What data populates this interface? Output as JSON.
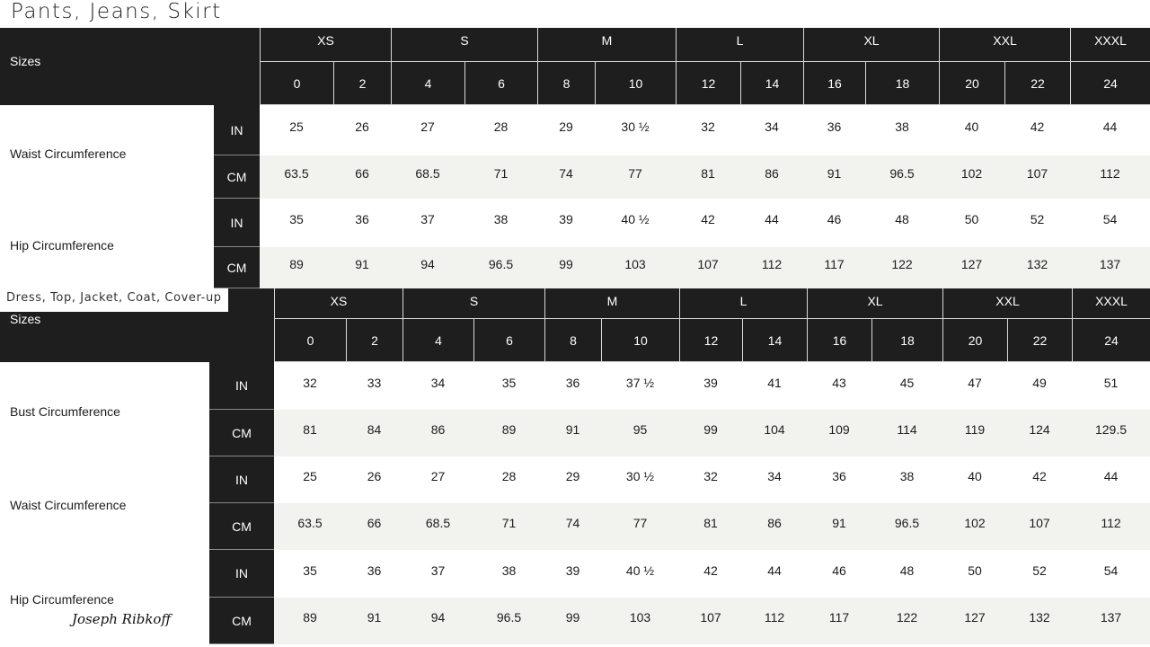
{
  "title": "Pants, Jeans, Skirt",
  "colors": {
    "header_bg": "#1e1e1e",
    "alt_row_bg": "#f2f2ee",
    "row_bg": "#ffffff"
  },
  "tables": [
    {
      "subtitle": "",
      "sizes_label": "Sizes",
      "groups": [
        "XS",
        "S",
        "M",
        "L",
        "XL",
        "XXL",
        "XXXL"
      ],
      "numbers": [
        "0",
        "2",
        "4",
        "6",
        "8",
        "10",
        "12",
        "14",
        "16",
        "18",
        "20",
        "22",
        "24"
      ],
      "measurements": [
        {
          "label": "Waist Circumference",
          "rows": [
            {
              "unit": "IN",
              "values": [
                "25",
                "26",
                "27",
                "28",
                "29",
                "30 ½",
                "32",
                "34",
                "36",
                "38",
                "40",
                "42",
                "44"
              ]
            },
            {
              "unit": "CM",
              "values": [
                "63.5",
                "66",
                "68.5",
                "71",
                "74",
                "77",
                "81",
                "86",
                "91",
                "96.5",
                "102",
                "107",
                "112"
              ]
            }
          ]
        },
        {
          "label": "Hip Circumference",
          "rows": [
            {
              "unit": "IN",
              "values": [
                "35",
                "36",
                "37",
                "38",
                "39",
                "40 ½",
                "42",
                "44",
                "46",
                "48",
                "50",
                "52",
                "54"
              ]
            },
            {
              "unit": "CM",
              "values": [
                "89",
                "91",
                "94",
                "96.5",
                "99",
                "103",
                "107",
                "112",
                "117",
                "122",
                "127",
                "132",
                "137"
              ]
            }
          ]
        }
      ]
    },
    {
      "subtitle": "Dress, Top, Jacket, Coat, Cover-up",
      "sizes_label": "Sizes",
      "groups": [
        "XS",
        "S",
        "M",
        "L",
        "XL",
        "XXL",
        "XXXL"
      ],
      "numbers": [
        "0",
        "2",
        "4",
        "6",
        "8",
        "10",
        "12",
        "14",
        "16",
        "18",
        "20",
        "22",
        "24"
      ],
      "measurements": [
        {
          "label": "Bust Circumference",
          "rows": [
            {
              "unit": "IN",
              "values": [
                "32",
                "33",
                "34",
                "35",
                "36",
                "37 ½",
                "39",
                "41",
                "43",
                "45",
                "47",
                "49",
                "51"
              ]
            },
            {
              "unit": "CM",
              "values": [
                "81",
                "84",
                "86",
                "89",
                "91",
                "95",
                "99",
                "104",
                "109",
                "114",
                "119",
                "124",
                "129.5"
              ]
            }
          ]
        },
        {
          "label": "Waist Circumference",
          "rows": [
            {
              "unit": "IN",
              "values": [
                "25",
                "26",
                "27",
                "28",
                "29",
                "30 ½",
                "32",
                "34",
                "36",
                "38",
                "40",
                "42",
                "44"
              ]
            },
            {
              "unit": "CM",
              "values": [
                "63.5",
                "66",
                "68.5",
                "71",
                "74",
                "77",
                "81",
                "86",
                "91",
                "96.5",
                "102",
                "107",
                "112"
              ]
            }
          ]
        },
        {
          "label": "Hip Circumference",
          "rows": [
            {
              "unit": "IN",
              "values": [
                "35",
                "36",
                "37",
                "38",
                "39",
                "40 ½",
                "42",
                "44",
                "46",
                "48",
                "50",
                "52",
                "54"
              ]
            },
            {
              "unit": "CM",
              "values": [
                "89",
                "91",
                "94",
                "96.5",
                "99",
                "103",
                "107",
                "112",
                "117",
                "122",
                "127",
                "132",
                "137"
              ]
            }
          ]
        }
      ]
    }
  ],
  "brand_signature": "Joseph Ribkoff"
}
